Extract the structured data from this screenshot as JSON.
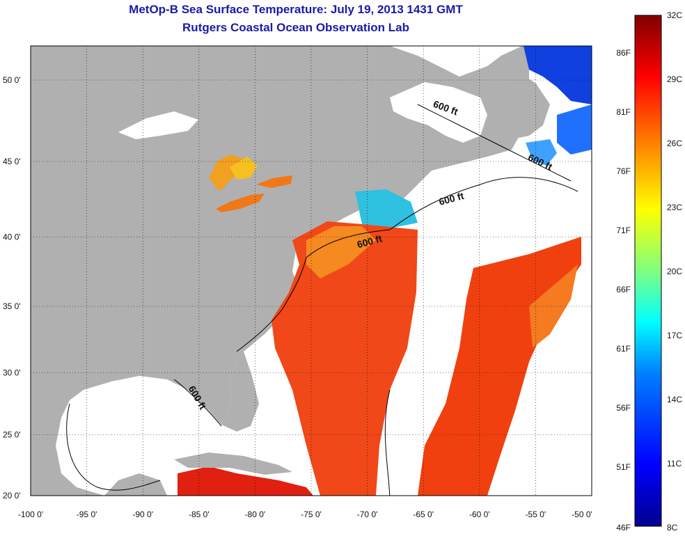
{
  "header": {
    "title": "MetOp-B Sea Surface Temperature:  July 19, 2013 1431 GMT",
    "subtitle": "Rutgers Coastal Ocean Observation Lab"
  },
  "map": {
    "lon_range": [
      -100,
      -50
    ],
    "lat_range": [
      20,
      52.5
    ],
    "lon_ticks": [
      "-100 0'",
      "-95 0'",
      "-90 0'",
      "-85 0'",
      "-80 0'",
      "-75 0'",
      "-70 0'",
      "-65 0'",
      "-60 0'",
      "-55 0'",
      "-50 0'"
    ],
    "lat_ticks": [
      "20 0'",
      "25 0'",
      "30 0'",
      "35 0'",
      "40 0'",
      "45 0'",
      "50 0'"
    ],
    "grid": "dotted",
    "land_color": "#b0b0b0",
    "no_data_color": "#ffffff",
    "isobath_labels": [
      "600 ft",
      "600 ft",
      "600 ft",
      "600 ft",
      "600 ft"
    ]
  },
  "colorbar": {
    "celsius_labels": [
      "32C",
      "29C",
      "26C",
      "23C",
      "20C",
      "17C",
      "14C",
      "11C",
      "8C"
    ],
    "fahrenheit_labels": [
      "86F",
      "81F",
      "76F",
      "71F",
      "66F",
      "61F",
      "56F",
      "51F",
      "46F"
    ],
    "min_c": 8,
    "max_c": 32,
    "colors": [
      "#00008f",
      "#0000ff",
      "#0080ff",
      "#00ffff",
      "#80ff80",
      "#ffff00",
      "#ff8000",
      "#ff0000",
      "#800000"
    ]
  }
}
